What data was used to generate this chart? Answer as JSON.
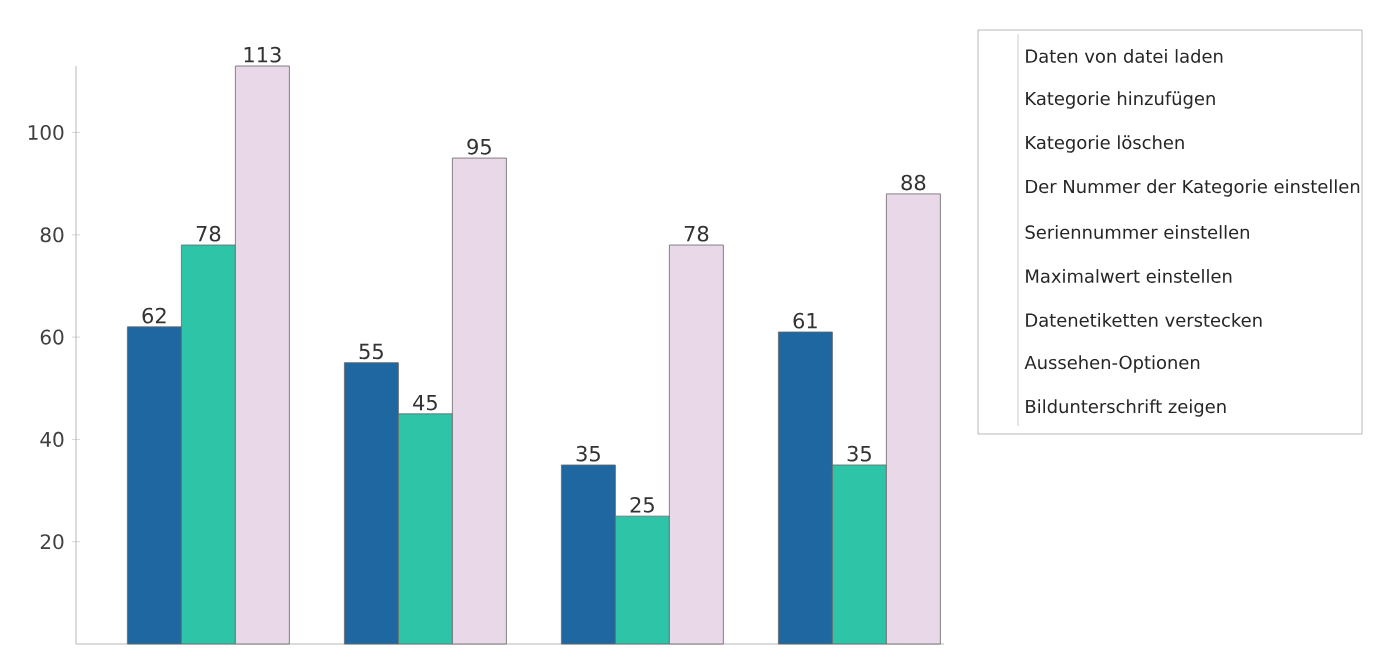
{
  "chart_data": {
    "type": "bar",
    "categories": [
      null,
      null,
      null,
      null
    ],
    "series": [
      {
        "color": "#1f67a0",
        "values": [
          62,
          55,
          35,
          61
        ]
      },
      {
        "color": "#2ec4a8",
        "values": [
          78,
          45,
          25,
          35
        ]
      },
      {
        "color": "#e8d8e8",
        "values": [
          113,
          95,
          78,
          88
        ]
      }
    ],
    "ylim": [
      0,
      113
    ],
    "yticks": [
      20,
      40,
      60,
      80,
      100
    ],
    "tick_labels": "y",
    "data_labels": true,
    "grid": false,
    "annotations": [
      "Daten von datei laden",
      "Kategorie hinzufügen",
      "Kategorie löschen",
      "Der Nummer der Kategorie einstellen",
      "Seriennummer einstellen",
      "Maximalwert einstellen",
      "Datenetiketten verstecken",
      "Aussehen-Optionen",
      "Bildunterschrift zeigen"
    ]
  }
}
